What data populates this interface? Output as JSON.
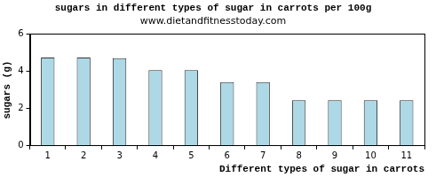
{
  "chart_data": {
    "type": "bar",
    "title": "sugars in different types of sugar in carrots per 100g",
    "subtitle": "www.dietandfitnesstoday.com",
    "x_label": "Different types of sugar in carrots",
    "y_label": "sugars (g)",
    "categories": [
      "1",
      "2",
      "3",
      "4",
      "5",
      "6",
      "7",
      "8",
      "9",
      "10",
      "11"
    ],
    "values": [
      4.74,
      4.74,
      4.7,
      4.06,
      4.06,
      3.42,
      3.42,
      2.45,
      2.45,
      2.45,
      2.45
    ],
    "color": "#add8e6",
    "ylim": [
      0,
      6
    ],
    "yticks": [
      0,
      2,
      4,
      6
    ],
    "grid": false
  }
}
